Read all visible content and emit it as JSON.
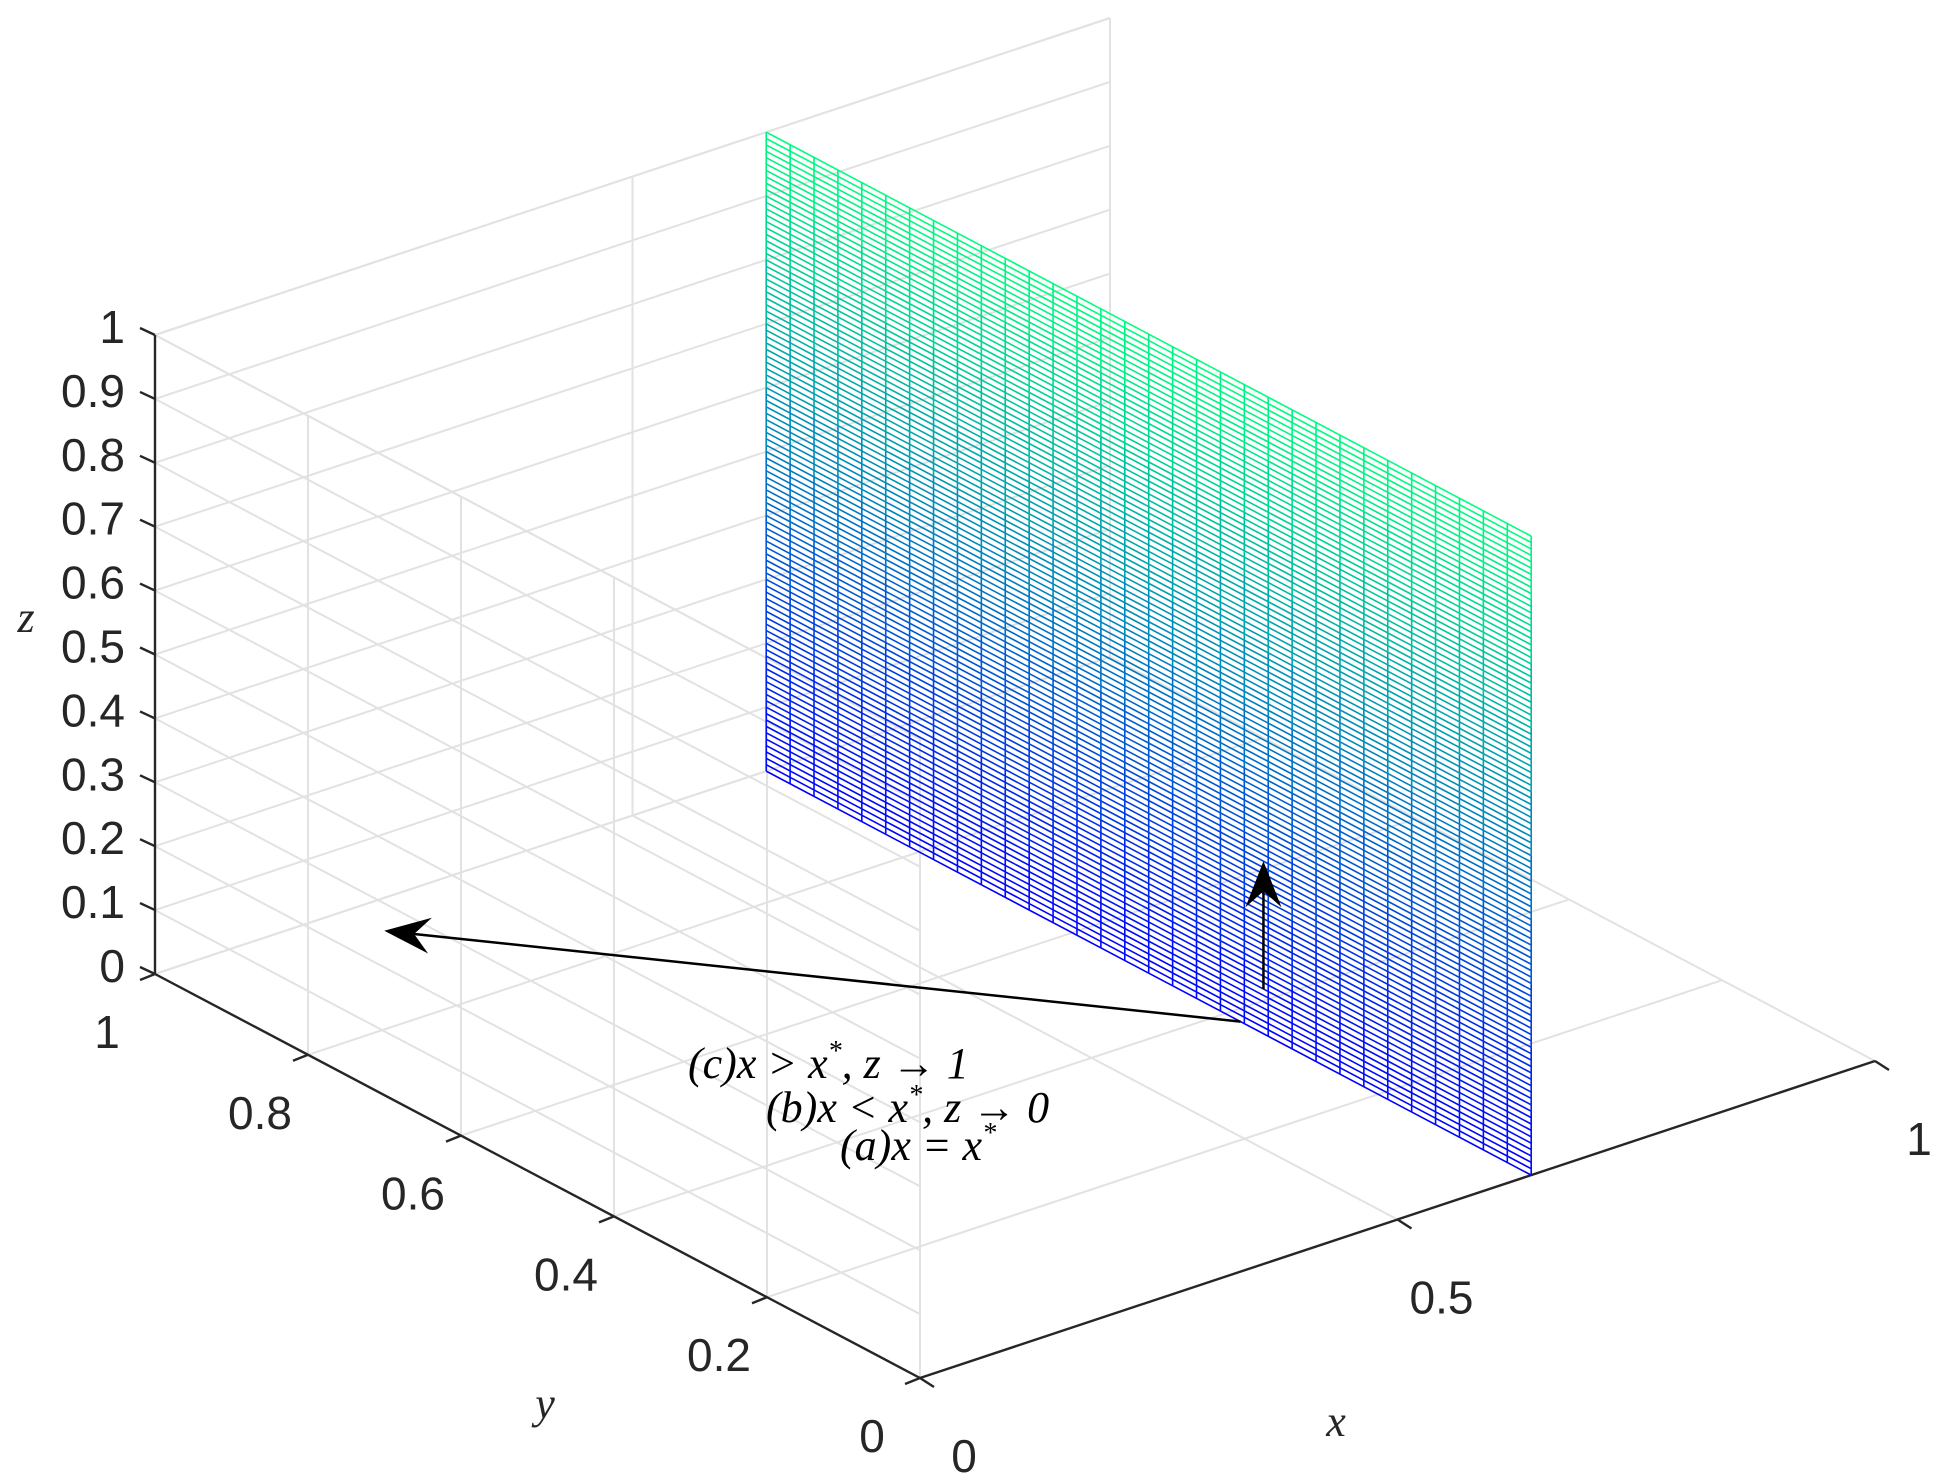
{
  "chart_data": {
    "type": "surface",
    "title": "",
    "xlabel": "x",
    "ylabel": "y",
    "zlabel": "z",
    "xlim": [
      0,
      1
    ],
    "ylim": [
      0,
      1
    ],
    "zlim": [
      0,
      1
    ],
    "xticks": [
      "0",
      "0.5",
      "1"
    ],
    "yticks": [
      "0",
      "0.2",
      "0.4",
      "0.6",
      "0.8",
      "1"
    ],
    "zticks": [
      "0",
      "0.1",
      "0.2",
      "0.3",
      "0.4",
      "0.5",
      "0.6",
      "0.7",
      "0.8",
      "0.9",
      "1"
    ],
    "grid": true,
    "surface": {
      "plane": "x = x*",
      "x_value": 0.64,
      "y_range": [
        0,
        1
      ],
      "z_range": [
        0,
        1
      ],
      "colormap": [
        "#0000ff",
        "#00ff80"
      ],
      "vertical_lines": 32,
      "horizontal_lines": 100
    },
    "annotations": {
      "c": {
        "prefix": "(c)",
        "text": "x > x",
        "sup": "*",
        "rest": ", z → 1"
      },
      "b": {
        "prefix": "(b)",
        "text": "x < x",
        "sup": "*",
        "rest": ", z → 0"
      },
      "a": {
        "prefix": "(a)",
        "text": "x = x",
        "sup": "*",
        "rest": ""
      }
    },
    "arrows": [
      {
        "name": "arrow-up",
        "from": [
          0.64,
          0.35,
          0.07
        ],
        "to": [
          0.64,
          0.35,
          0.27
        ]
      },
      {
        "name": "arrow-left",
        "from": [
          0.64,
          0.38,
          0.0
        ],
        "to": [
          0.2,
          0.95,
          0.0
        ]
      }
    ]
  }
}
